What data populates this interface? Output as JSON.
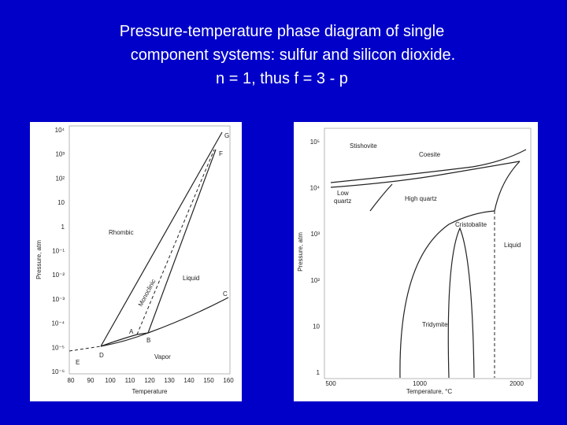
{
  "title": [
    "Pressure-temperature phase diagram of single",
    "component systems: sulfur and silicon dioxide.",
    "n = 1, thus f = 3 - p"
  ],
  "sulfur": {
    "y_axis_label": "Pressure, atm",
    "x_axis_label": "Temperature",
    "y_ticks": [
      "10⁴",
      "10³",
      "10²",
      "10",
      "1",
      "10⁻¹",
      "10⁻²",
      "10⁻³",
      "10⁻⁴",
      "10⁻⁵",
      "10⁻⁶"
    ],
    "x_ticks": [
      "80",
      "90",
      "100",
      "110",
      "120",
      "130",
      "140",
      "150",
      "160"
    ],
    "regions": {
      "rhombic": "Rhombic",
      "monoclinic": "Monoclinic",
      "liquid": "Liquid",
      "vapor": "Vapor"
    },
    "points": {
      "g": "G",
      "f": "F",
      "c": "C",
      "a": "A",
      "b": "B",
      "d": "D",
      "e": "E"
    }
  },
  "silica": {
    "y_axis_label": "Pressure, atm",
    "x_axis_label": "Temperature, °C",
    "y_ticks": [
      "10⁵",
      "10⁴",
      "10³",
      "10²",
      "10",
      "1"
    ],
    "x_ticks": [
      "500",
      "1000",
      "2000"
    ],
    "regions": {
      "stishovite": "Stishovite",
      "coesite": "Coesite",
      "low_quartz": [
        "Low",
        "quartz"
      ],
      "high_quartz": "High quartz",
      "cristobalite": "Cristobalite",
      "liquid": "Liquid",
      "tridymite": "Tridymite"
    }
  }
}
